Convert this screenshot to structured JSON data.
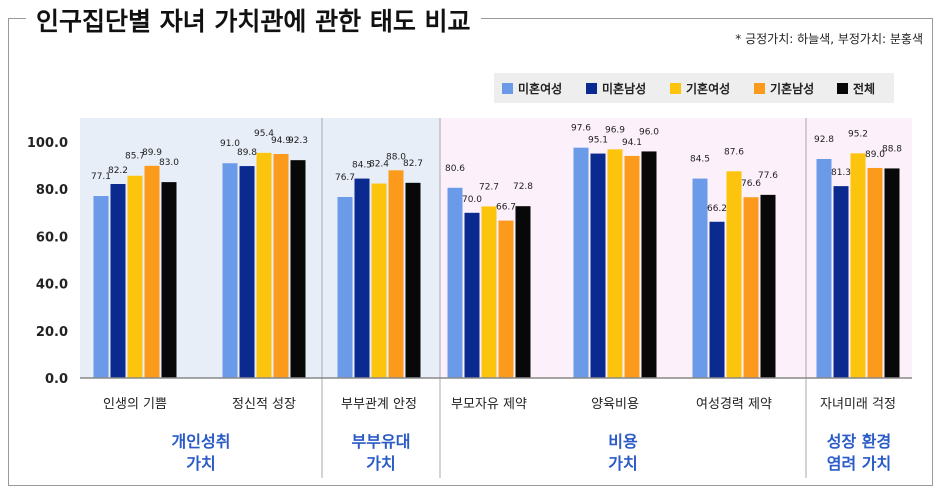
{
  "title": "인구집단별 자녀 가치관에 관한 태도 비교",
  "note": "* 긍정가치: 하늘색, 부정가치: 분홍색",
  "colors": {
    "positive_band": "#e8eef8",
    "negative_band": "#fcf0fa",
    "series": [
      "#6b9ae8",
      "#0a2a90",
      "#fdc40e",
      "#fb9a1b",
      "#080808"
    ]
  },
  "chart_data": {
    "type": "bar",
    "categories": [
      "인생의 기쁨",
      "정신적 성장",
      "부부관계 안정",
      "부모자유 제약",
      "양육비용",
      "여성경력 제약",
      "자녀미래 걱정"
    ],
    "series": [
      {
        "name": "미혼여성",
        "values": [
          77.1,
          91.0,
          76.7,
          80.6,
          97.6,
          84.5,
          92.8
        ]
      },
      {
        "name": "미혼남성",
        "values": [
          82.2,
          89.8,
          84.5,
          70.0,
          95.1,
          66.2,
          81.3
        ]
      },
      {
        "name": "기혼여성",
        "values": [
          85.7,
          95.4,
          82.4,
          72.7,
          96.9,
          87.6,
          95.2
        ]
      },
      {
        "name": "기혼남성",
        "values": [
          89.9,
          94.9,
          88.0,
          66.7,
          94.1,
          76.6,
          89.0
        ]
      },
      {
        "name": "전체",
        "values": [
          83.0,
          92.3,
          82.7,
          72.8,
          96.0,
          77.6,
          88.8
        ]
      }
    ],
    "data_labels": [
      [
        "77.1",
        "82.2",
        "85.7",
        "89.9",
        "83.0"
      ],
      [
        "91.0",
        "89.8",
        "95.4",
        "94.9",
        "92.3"
      ],
      [
        "76.7",
        "84.5",
        "82.4",
        "88.0",
        "82.7"
      ],
      [
        "80.6",
        "70.0",
        "72.7",
        "66.7",
        "72.8"
      ],
      [
        "97.6",
        "95.1",
        "96.9",
        "94.1",
        "96.0"
      ],
      [
        "84.5",
        "66.2",
        "87.6",
        "76.6",
        "77.6"
      ],
      [
        "92.8",
        "81.3",
        "95.2",
        "89.0",
        "88.8"
      ]
    ],
    "y_ticks": [
      "0.0",
      "20.0",
      "40.0",
      "60.0",
      "80.0",
      "100.0"
    ],
    "ylim": [
      0,
      100
    ],
    "groups": [
      {
        "label_lines": [
          "개인성취",
          "가치"
        ],
        "categories": 2,
        "tone": "positive"
      },
      {
        "label_lines": [
          "부부유대",
          "가치"
        ],
        "categories": 1,
        "tone": "positive"
      },
      {
        "label_lines": [
          "비용",
          "가치"
        ],
        "categories": 3,
        "tone": "negative"
      },
      {
        "label_lines": [
          "성장 환경",
          "염려 가치"
        ],
        "categories": 1,
        "tone": "negative"
      }
    ],
    "legend_position": "top-right",
    "grid": false
  }
}
